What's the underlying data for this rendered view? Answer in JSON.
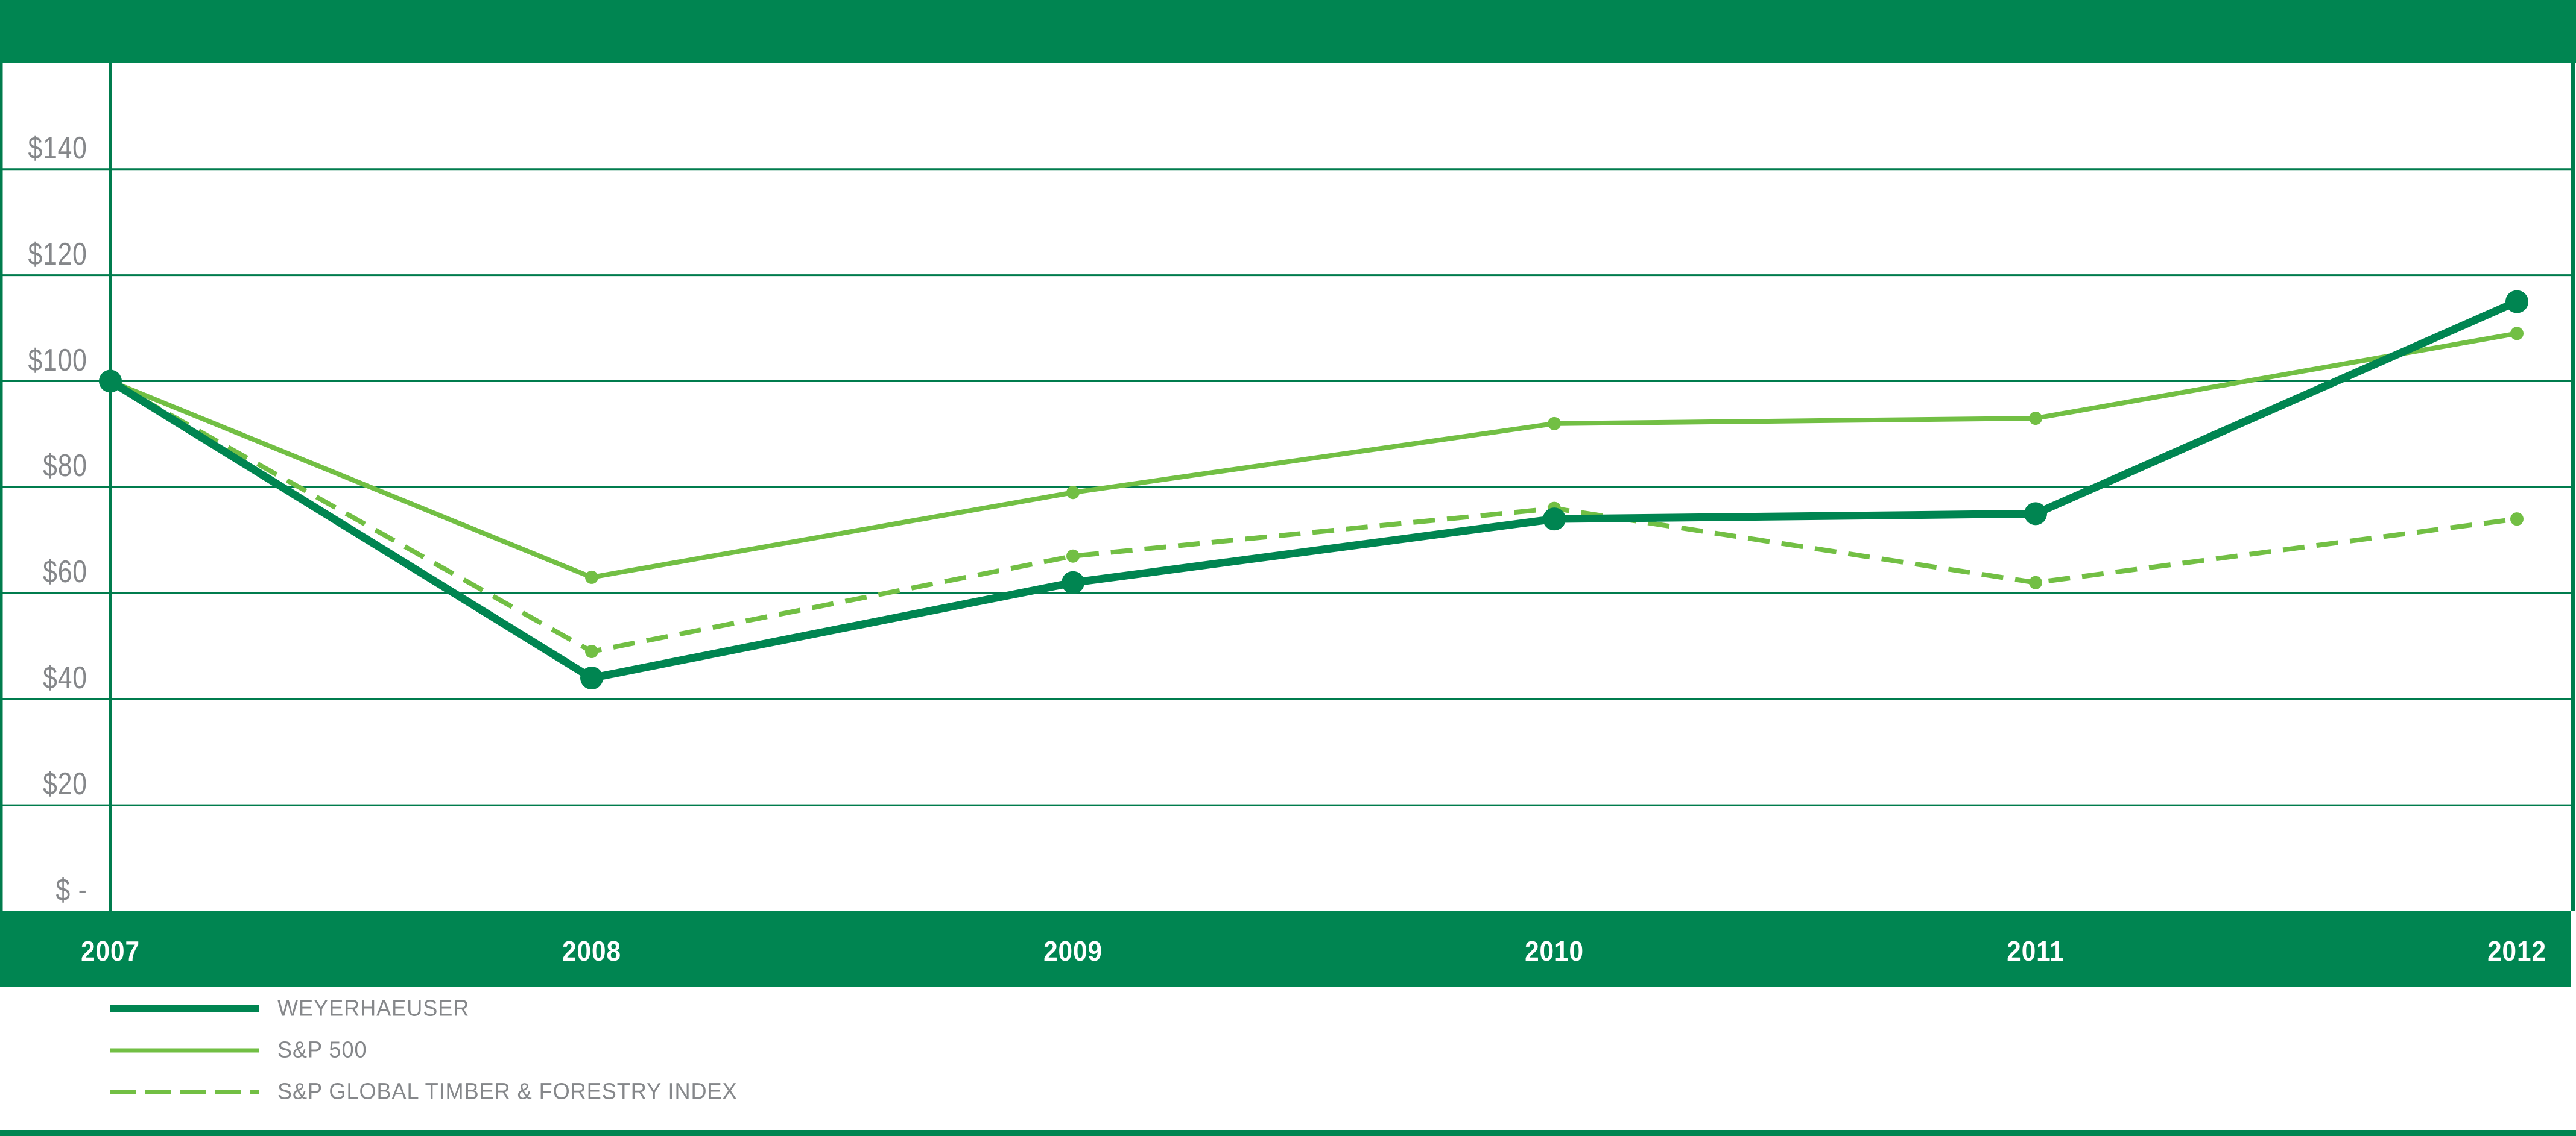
{
  "banner": {
    "text": ""
  },
  "colors": {
    "brand_green": "#008551",
    "light_green": "#72BF44",
    "grid_green": "#007C4D",
    "label_gray": "#85878A",
    "year_label_white": "#FFFFFF",
    "background": "#FFFFFF"
  },
  "chart_data": {
    "type": "line",
    "title": "",
    "xlabel": "",
    "ylabel": "",
    "categories": [
      "2007",
      "2008",
      "2009",
      "2010",
      "2011",
      "2012"
    ],
    "ylim": [
      0,
      160
    ],
    "grid": "horizontal-only",
    "legend_position": "bottom-left",
    "y_ticks": [
      {
        "value": 140,
        "label": "$140"
      },
      {
        "value": 120,
        "label": "$120"
      },
      {
        "value": 100,
        "label": "$100"
      },
      {
        "value": 80,
        "label": "$80"
      },
      {
        "value": 60,
        "label": "$60"
      },
      {
        "value": 40,
        "label": "$40"
      },
      {
        "value": 20,
        "label": "$20"
      },
      {
        "value": 0,
        "label": "$ -"
      }
    ],
    "series": [
      {
        "name": "WEYERHAEUSER",
        "style": "solid-thick",
        "color": "#008551",
        "marker_radius": 19,
        "line_width": 13,
        "values": [
          100,
          44,
          62,
          74,
          75,
          115
        ]
      },
      {
        "name": "S&P 500",
        "style": "solid-thin",
        "color": "#72BF44",
        "marker_radius": 11,
        "line_width": 8,
        "values": [
          100,
          63,
          79,
          92,
          93,
          109
        ]
      },
      {
        "name": "S&P GLOBAL TIMBER & FORESTRY INDEX",
        "style": "dashed",
        "color": "#72BF44",
        "marker_radius": 11,
        "line_width": 8,
        "values": [
          100,
          49,
          67,
          76,
          62,
          74
        ]
      }
    ]
  }
}
